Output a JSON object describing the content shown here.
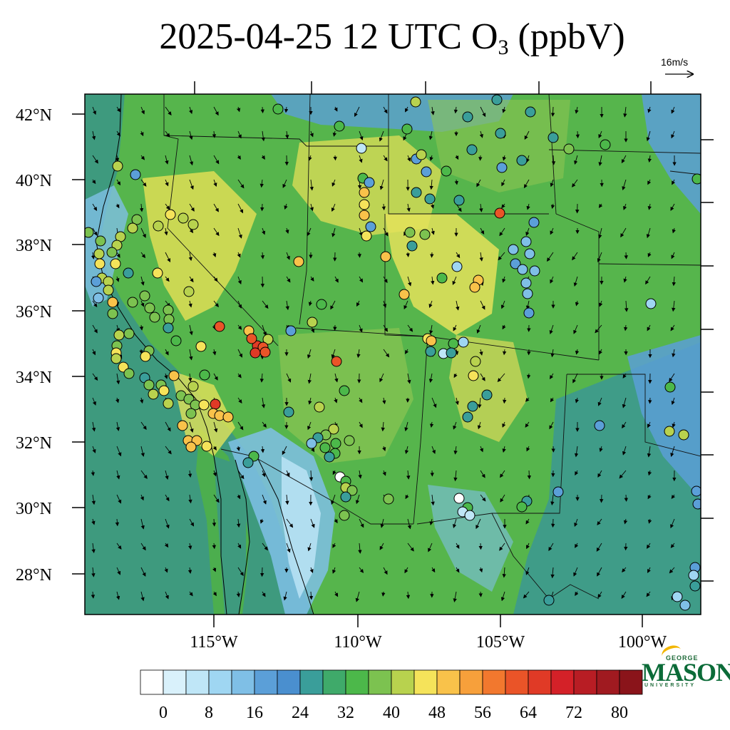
{
  "title": {
    "main": "2025-04-25 12 UTC O",
    "sub": "3",
    "unit": " (ppbV)"
  },
  "wind_scale": {
    "label": "16m/s"
  },
  "lat_labels": [
    "42°N",
    "40°N",
    "38°N",
    "36°N",
    "34°N",
    "32°N",
    "30°N",
    "28°N"
  ],
  "lon_labels": [
    "115°W",
    "110°W",
    "105°W",
    "100°W"
  ],
  "colorbar": {
    "tick_labels": [
      "0",
      "8",
      "16",
      "24",
      "32",
      "40",
      "48",
      "56",
      "64",
      "72",
      "80"
    ],
    "colors": [
      "#ffffff",
      "#d9f1fb",
      "#bfe6f7",
      "#9fd6f2",
      "#7fbfe6",
      "#5b9fd8",
      "#4a8fcf",
      "#3a9e9a",
      "#3faa6a",
      "#4cb84a",
      "#7cc250",
      "#b8d24e",
      "#f5e35a",
      "#f9c24a",
      "#f7a03b",
      "#f2782e",
      "#ea5428",
      "#e03a26",
      "#d42128",
      "#b81d24",
      "#a01a20",
      "#8a141a"
    ]
  },
  "logo": {
    "line1": "GEORGE",
    "line2": "MASON",
    "line3": "UNIVERSITY"
  },
  "colors": {
    "ocean": "#3e9a7e",
    "land_base": "#5cb84e",
    "frame": "#000000"
  }
}
